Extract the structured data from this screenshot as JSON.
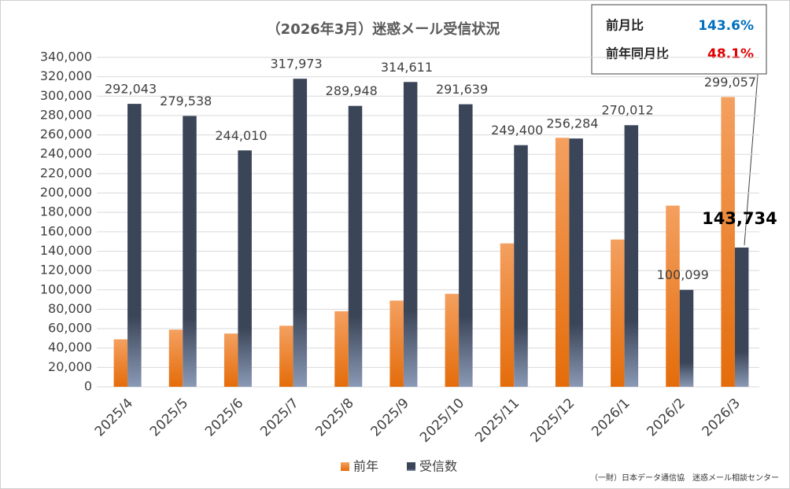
{
  "chart_data": {
    "type": "bar",
    "title": "（2026年3月）迷惑メール受信状況",
    "categories": [
      "2025/4",
      "2025/5",
      "2025/6",
      "2025/7",
      "2025/8",
      "2025/9",
      "2025/10",
      "2025/11",
      "2025/12",
      "2026/1",
      "2026/2",
      "2026/3"
    ],
    "series": [
      {
        "name": "前年",
        "color": "#ed7d31",
        "values": [
          49000,
          59000,
          55000,
          63000,
          78000,
          89000,
          96000,
          148000,
          257000,
          152000,
          187000,
          299057
        ],
        "value_labels": [
          null,
          null,
          null,
          null,
          null,
          null,
          null,
          null,
          null,
          null,
          null,
          "299,057"
        ]
      },
      {
        "name": "受信数",
        "color": "#3b4558",
        "values": [
          292043,
          279538,
          244010,
          317973,
          289948,
          314611,
          291639,
          249400,
          256284,
          270012,
          100099,
          143734
        ],
        "value_labels": [
          "292,043",
          "279,538",
          "244,010",
          "317,973",
          "289,948",
          "314,611",
          "291,639",
          "249,400",
          "256,284",
          "270,012",
          "100,099",
          "143,734"
        ]
      }
    ],
    "ylim": [
      0,
      340000
    ],
    "yticks": [
      0,
      {
        "value": 20000,
        "label": "20,000"
      },
      {
        "value": 40000,
        "label": "40,000"
      },
      {
        "value": 60000,
        "label": "60,000"
      },
      {
        "value": 80000,
        "label": "80,000"
      },
      {
        "value": 100000,
        "label": "100,000"
      },
      {
        "value": 120000,
        "label": "120,000"
      },
      {
        "value": 140000,
        "label": "140,000"
      },
      {
        "value": 160000,
        "label": "160,000"
      },
      {
        "value": 180000,
        "label": "180,000"
      },
      {
        "value": 200000,
        "label": "200,000"
      },
      {
        "value": 220000,
        "label": "220,000"
      },
      {
        "value": 240000,
        "label": "240,000"
      },
      {
        "value": 260000,
        "label": "260,000"
      },
      {
        "value": 280000,
        "label": "280,000"
      },
      {
        "value": 300000,
        "label": "300,000"
      },
      {
        "value": 320000,
        "label": "320,000"
      },
      {
        "value": 340000,
        "label": "340,000"
      }
    ],
    "grid": true,
    "annotations": [
      {
        "label": "前月比",
        "value": "143.6%",
        "color": "#0070c0"
      },
      {
        "label": "前年同月比",
        "value": "48.1%",
        "color": "#e00000"
      }
    ],
    "source": "（一財）日本データ通信協　迷惑メール相談センター"
  }
}
